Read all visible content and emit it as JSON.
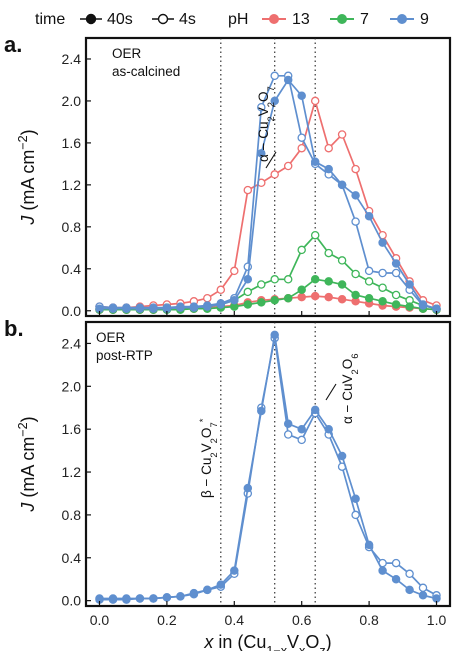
{
  "legend": {
    "time_label": "time",
    "time_items": [
      {
        "label": "40s",
        "marker": "filled"
      },
      {
        "label": "4s",
        "marker": "open"
      }
    ],
    "ph_label": "pH",
    "ph_items": [
      {
        "label": "13",
        "color": "#ee6f6f"
      },
      {
        "label": "7",
        "color": "#3fb65a"
      },
      {
        "label": "9",
        "color": "#5f8fcf"
      }
    ]
  },
  "x_axis": {
    "ticks": [
      "0.0",
      "0.2",
      "0.4",
      "0.6",
      "0.8",
      "1.0"
    ],
    "range": [
      -0.04,
      1.04
    ]
  },
  "chart_data": [
    {
      "type": "line",
      "panel_label": "a.",
      "annotation": [
        "OER",
        "as-calcined"
      ],
      "ylabel": "J (mA cm⁻²)",
      "ylim": [
        -0.05,
        2.6
      ],
      "yticks": [
        "0.0",
        "0.4",
        "0.8",
        "1.2",
        "1.6",
        "2.0",
        "2.4"
      ],
      "phase_lines_x": [
        0.36,
        0.52,
        0.64
      ],
      "phase_label": "α − Cu₂V₂O₇",
      "series": [
        {
          "ph": "13",
          "time": "4s",
          "color": "#ee6f6f",
          "marker": "open",
          "x": [
            0,
            0.04,
            0.08,
            0.12,
            0.16,
            0.2,
            0.24,
            0.28,
            0.32,
            0.36,
            0.4,
            0.44,
            0.48,
            0.52,
            0.56,
            0.6,
            0.64,
            0.68,
            0.72,
            0.76,
            0.8,
            0.84,
            0.88,
            0.92,
            0.96,
            1.0
          ],
          "y": [
            0.04,
            0.03,
            0.03,
            0.04,
            0.05,
            0.06,
            0.07,
            0.09,
            0.12,
            0.2,
            0.38,
            1.15,
            1.22,
            1.3,
            1.38,
            1.55,
            2.0,
            1.55,
            1.68,
            1.35,
            0.95,
            0.72,
            0.5,
            0.28,
            0.1,
            0.05
          ]
        },
        {
          "ph": "13",
          "time": "40s",
          "color": "#ee6f6f",
          "marker": "filled",
          "x": [
            0,
            0.04,
            0.08,
            0.12,
            0.16,
            0.2,
            0.24,
            0.28,
            0.32,
            0.36,
            0.4,
            0.44,
            0.48,
            0.52,
            0.56,
            0.6,
            0.64,
            0.68,
            0.72,
            0.76,
            0.8,
            0.84,
            0.88,
            0.92,
            0.96,
            1.0
          ],
          "y": [
            0.01,
            0.01,
            0.01,
            0.01,
            0.01,
            0.02,
            0.02,
            0.02,
            0.03,
            0.04,
            0.05,
            0.08,
            0.1,
            0.11,
            0.12,
            0.13,
            0.14,
            0.13,
            0.11,
            0.09,
            0.07,
            0.05,
            0.04,
            0.03,
            0.02,
            0.01
          ]
        },
        {
          "ph": "7",
          "time": "4s",
          "color": "#3fb65a",
          "marker": "open",
          "x": [
            0,
            0.04,
            0.08,
            0.12,
            0.16,
            0.2,
            0.24,
            0.28,
            0.32,
            0.36,
            0.4,
            0.44,
            0.48,
            0.52,
            0.56,
            0.6,
            0.64,
            0.68,
            0.72,
            0.76,
            0.8,
            0.84,
            0.88,
            0.92,
            0.96,
            1.0
          ],
          "y": [
            0.02,
            0.02,
            0.02,
            0.02,
            0.02,
            0.03,
            0.03,
            0.03,
            0.04,
            0.06,
            0.1,
            0.18,
            0.25,
            0.3,
            0.3,
            0.58,
            0.72,
            0.55,
            0.48,
            0.35,
            0.28,
            0.22,
            0.15,
            0.1,
            0.05,
            0.02
          ]
        },
        {
          "ph": "7",
          "time": "40s",
          "color": "#3fb65a",
          "marker": "filled",
          "x": [
            0,
            0.04,
            0.08,
            0.12,
            0.16,
            0.2,
            0.24,
            0.28,
            0.32,
            0.36,
            0.4,
            0.44,
            0.48,
            0.52,
            0.56,
            0.6,
            0.64,
            0.68,
            0.72,
            0.76,
            0.8,
            0.84,
            0.88,
            0.92,
            0.96,
            1.0
          ],
          "y": [
            0.01,
            0.01,
            0.01,
            0.01,
            0.01,
            0.01,
            0.01,
            0.02,
            0.02,
            0.03,
            0.04,
            0.06,
            0.08,
            0.1,
            0.12,
            0.2,
            0.3,
            0.28,
            0.25,
            0.15,
            0.12,
            0.09,
            0.06,
            0.04,
            0.02,
            0.01
          ]
        },
        {
          "ph": "9",
          "time": "4s",
          "color": "#5f8fcf",
          "marker": "open",
          "x": [
            0,
            0.04,
            0.08,
            0.12,
            0.16,
            0.2,
            0.24,
            0.28,
            0.32,
            0.36,
            0.4,
            0.44,
            0.48,
            0.52,
            0.56,
            0.6,
            0.64,
            0.68,
            0.72,
            0.76,
            0.8,
            0.84,
            0.88,
            0.92,
            0.96,
            1.0
          ],
          "y": [
            0.04,
            0.03,
            0.03,
            0.03,
            0.03,
            0.03,
            0.04,
            0.04,
            0.05,
            0.07,
            0.12,
            0.42,
            1.94,
            2.24,
            2.24,
            1.65,
            1.4,
            1.3,
            1.2,
            0.85,
            0.38,
            0.36,
            0.36,
            0.2,
            0.05,
            0.02
          ]
        },
        {
          "ph": "9",
          "time": "40s",
          "color": "#5f8fcf",
          "marker": "filled",
          "x": [
            0,
            0.04,
            0.08,
            0.12,
            0.16,
            0.2,
            0.24,
            0.28,
            0.32,
            0.36,
            0.4,
            0.44,
            0.48,
            0.52,
            0.56,
            0.6,
            0.64,
            0.68,
            0.72,
            0.76,
            0.8,
            0.84,
            0.88,
            0.92,
            0.96,
            1.0
          ],
          "y": [
            0.02,
            0.02,
            0.02,
            0.02,
            0.02,
            0.02,
            0.03,
            0.03,
            0.04,
            0.06,
            0.1,
            0.3,
            1.5,
            2.0,
            2.2,
            2.05,
            1.42,
            1.35,
            1.2,
            1.1,
            0.9,
            0.65,
            0.45,
            0.25,
            0.06,
            0.02
          ]
        }
      ]
    },
    {
      "type": "line",
      "panel_label": "b.",
      "annotation": [
        "OER",
        "post-RTP"
      ],
      "ylabel": "J (mA cm⁻²)",
      "ylim": [
        -0.05,
        2.6
      ],
      "yticks": [
        "0.0",
        "0.4",
        "0.8",
        "1.2",
        "1.6",
        "2.0",
        "2.4"
      ],
      "phase_lines_x": [
        0.36,
        0.52,
        0.64
      ],
      "phase_labels": [
        "β − Cu₂V₂O₇*",
        "α − CuV₂O₆"
      ],
      "series": [
        {
          "ph": "9",
          "time": "4s",
          "color": "#5f8fcf",
          "marker": "open",
          "x": [
            0,
            0.04,
            0.08,
            0.12,
            0.16,
            0.2,
            0.24,
            0.28,
            0.32,
            0.36,
            0.4,
            0.44,
            0.48,
            0.52,
            0.56,
            0.6,
            0.64,
            0.68,
            0.72,
            0.76,
            0.8,
            0.84,
            0.88,
            0.92,
            0.96,
            1.0
          ],
          "y": [
            0.02,
            0.02,
            0.02,
            0.02,
            0.02,
            0.03,
            0.04,
            0.06,
            0.1,
            0.13,
            0.25,
            1.0,
            1.8,
            2.45,
            1.55,
            1.5,
            1.75,
            1.55,
            1.25,
            0.8,
            0.5,
            0.35,
            0.35,
            0.25,
            0.12,
            0.05
          ]
        },
        {
          "ph": "9",
          "time": "40s",
          "color": "#5f8fcf",
          "marker": "filled",
          "x": [
            0,
            0.04,
            0.08,
            0.12,
            0.16,
            0.2,
            0.24,
            0.28,
            0.32,
            0.36,
            0.4,
            0.44,
            0.48,
            0.52,
            0.56,
            0.6,
            0.64,
            0.68,
            0.72,
            0.76,
            0.8,
            0.84,
            0.88,
            0.92,
            0.96,
            1.0
          ],
          "y": [
            0.01,
            0.01,
            0.01,
            0.02,
            0.02,
            0.03,
            0.04,
            0.07,
            0.1,
            0.15,
            0.28,
            1.05,
            1.77,
            2.48,
            1.65,
            1.6,
            1.78,
            1.6,
            1.35,
            0.95,
            0.52,
            0.28,
            0.2,
            0.1,
            0.05,
            0.02
          ]
        }
      ]
    }
  ]
}
